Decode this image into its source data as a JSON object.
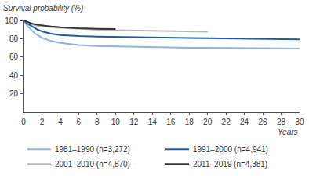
{
  "chart_data": {
    "type": "line",
    "ylabel": "Survival probability (%)",
    "xlabel": "Years",
    "xlim": [
      0,
      30
    ],
    "xticks": [
      0,
      2,
      4,
      6,
      8,
      10,
      12,
      14,
      16,
      18,
      20,
      22,
      24,
      26,
      28,
      30
    ],
    "ylim": [
      0,
      100
    ],
    "yticks": [
      20,
      40,
      60,
      80,
      100
    ],
    "grid": false,
    "legend": "bottom",
    "series": [
      {
        "name": "1981–1990 (n=3,272)",
        "color": "#8fb4dc",
        "x": [
          0,
          0.5,
          1,
          1.5,
          2,
          3,
          4,
          5,
          6,
          8,
          10,
          12,
          14,
          16,
          18,
          20,
          22,
          24,
          26,
          28,
          30
        ],
        "values": [
          100,
          93,
          88,
          84,
          81,
          77.5,
          75.5,
          74,
          73,
          72,
          71.5,
          71,
          70.5,
          70.3,
          70,
          70,
          69.8,
          69.6,
          69.5,
          69.3,
          69.2
        ]
      },
      {
        "name": "1991–2000 (n=4,941)",
        "color": "#1f5c99",
        "x": [
          0,
          0.5,
          1,
          1.5,
          2,
          3,
          4,
          5,
          6,
          8,
          10,
          12,
          14,
          16,
          18,
          20,
          22,
          24,
          26,
          28,
          30
        ],
        "values": [
          100,
          96,
          93,
          90,
          88,
          85.5,
          84,
          83.3,
          82.8,
          82.2,
          81.8,
          81.5,
          81.2,
          81,
          80.8,
          80.6,
          80.4,
          80.2,
          80,
          79.8,
          79.3
        ]
      },
      {
        "name": "2001–2010 (n=4,870)",
        "color": "#b8b8b8",
        "x": [
          0,
          0.5,
          1,
          1.5,
          2,
          3,
          4,
          5,
          6,
          8,
          10,
          12,
          14,
          16,
          18,
          20
        ],
        "values": [
          100,
          97.5,
          95.5,
          94.3,
          93.5,
          92.5,
          91.8,
          91.2,
          90.7,
          90,
          89.4,
          89,
          88.6,
          88.2,
          87.9,
          87.6
        ]
      },
      {
        "name": "2011–2019 (n=4,381)",
        "color": "#333333",
        "x": [
          0,
          0.5,
          1,
          1.5,
          2,
          3,
          4,
          5,
          6,
          8,
          10
        ],
        "values": [
          100,
          98,
          96.3,
          95.2,
          94.4,
          93.4,
          92.6,
          92,
          91.5,
          90.9,
          90.5
        ]
      }
    ]
  }
}
